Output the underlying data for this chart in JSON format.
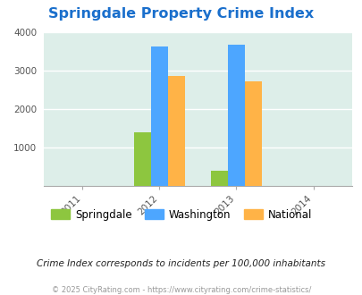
{
  "title": "Springdale Property Crime Index",
  "bar_years": [
    2012,
    2013
  ],
  "springdale": [
    1400,
    390
  ],
  "washington": [
    3640,
    3680
  ],
  "national": [
    2860,
    2720
  ],
  "colors": {
    "springdale": "#8dc63f",
    "washington": "#4da6ff",
    "national": "#ffb347"
  },
  "ylim": [
    0,
    4000
  ],
  "yticks": [
    0,
    1000,
    2000,
    3000,
    4000
  ],
  "background_color": "#ddeee9",
  "title_color": "#1a6fcc",
  "subtitle": "Crime Index corresponds to incidents per 100,000 inhabitants",
  "footer": "© 2025 CityRating.com - https://www.cityrating.com/crime-statistics/",
  "bar_width": 0.22
}
